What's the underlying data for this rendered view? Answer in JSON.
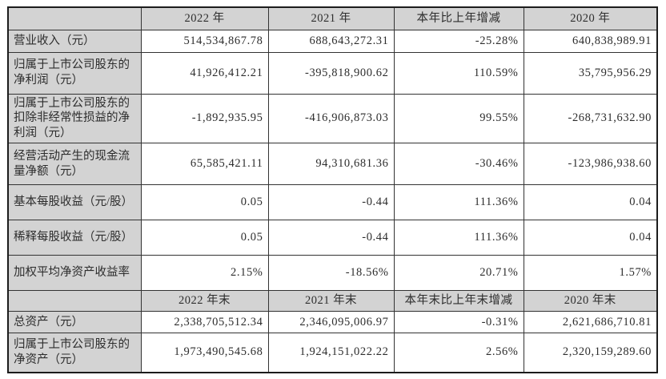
{
  "table": {
    "style": {
      "header_background": "#d3d3d3",
      "cell_background": "#ffffff",
      "border_color": "#333333",
      "outer_border_color": "#1c1c1c",
      "text_color": "#2d2d2d"
    },
    "sections": [
      {
        "headers": [
          "",
          "2022 年",
          "2021 年",
          "本年比上年增减",
          "2020 年"
        ],
        "rows": [
          {
            "label": "营业收入（元）",
            "values": [
              "514,534,867.78",
              "688,643,272.31",
              "-25.28%",
              "640,838,989.91"
            ]
          },
          {
            "label": "归属于上市公司股东的净利润（元）",
            "values": [
              "41,926,412.21",
              "-395,818,900.62",
              "110.59%",
              "35,795,956.29"
            ]
          },
          {
            "label": "归属于上市公司股东的扣除非经常性损益的净利润（元）",
            "values": [
              "-1,892,935.95",
              "-416,906,873.03",
              "99.55%",
              "-268,731,632.90"
            ]
          },
          {
            "label": "经营活动产生的现金流量净额（元）",
            "values": [
              "65,585,421.11",
              "94,310,681.36",
              "-30.46%",
              "-123,986,938.60"
            ]
          },
          {
            "label": "基本每股收益（元/股）",
            "values": [
              "0.05",
              "-0.44",
              "111.36%",
              "0.04"
            ]
          },
          {
            "label": "稀释每股收益（元/股）",
            "values": [
              "0.05",
              "-0.44",
              "111.36%",
              "0.04"
            ]
          },
          {
            "label": "加权平均净资产收益率",
            "values": [
              "2.15%",
              "-18.56%",
              "20.71%",
              "1.57%"
            ]
          }
        ]
      },
      {
        "headers": [
          "",
          "2022 年末",
          "2021 年末",
          "本年末比上年末增减",
          "2020 年末"
        ],
        "rows": [
          {
            "label": "总资产（元）",
            "values": [
              "2,338,705,512.34",
              "2,346,095,006.97",
              "-0.31%",
              "2,621,686,710.81"
            ]
          },
          {
            "label": "归属于上市公司股东的净资产（元）",
            "values": [
              "1,973,490,545.68",
              "1,924,151,022.22",
              "2.56%",
              "2,320,159,289.60"
            ]
          }
        ]
      }
    ]
  }
}
